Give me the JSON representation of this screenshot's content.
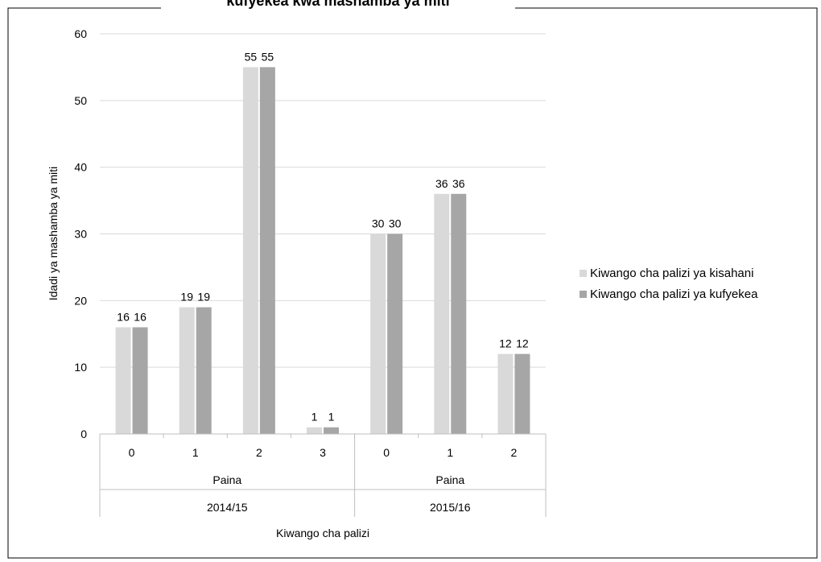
{
  "chart_data": {
    "type": "bar",
    "title": "kufyekea kwa mashamba ya miti",
    "ylabel": "Idadi ya mashamba ya miti",
    "xlabel": "Kiwango cha palizi",
    "ylim": [
      0,
      60
    ],
    "yticks": [
      "0",
      "10",
      "20",
      "30",
      "40",
      "50",
      "60"
    ],
    "grid": true,
    "legend_position": "right",
    "categories": [
      "0",
      "1",
      "2",
      "3",
      "0",
      "1",
      "2"
    ],
    "group_labels": [
      {
        "level2": "Paina",
        "level3": "2014/15",
        "span": [
          0,
          3
        ]
      },
      {
        "level2": "Paina",
        "level3": "2015/16",
        "span": [
          4,
          6
        ]
      }
    ],
    "series": [
      {
        "name": "Kiwango cha palizi ya kisahani",
        "values": [
          16,
          19,
          55,
          1,
          30,
          36,
          12
        ],
        "color": "#d9d9d9"
      },
      {
        "name": "Kiwango cha palizi ya kufyekea",
        "values": [
          16,
          19,
          55,
          1,
          30,
          36,
          12
        ],
        "color": "#a6a6a6"
      }
    ],
    "colors": {
      "grid": "#d9d9d9",
      "axis": "#bfbfbf"
    }
  }
}
